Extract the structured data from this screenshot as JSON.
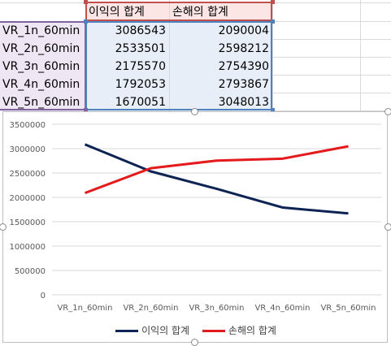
{
  "sheet": {
    "headers": [
      "이익의 합계",
      "손해의 합계"
    ],
    "rows": [
      {
        "name": "VR_1n_60min",
        "profit": "3086543",
        "loss": "2090004"
      },
      {
        "name": "VR_2n_60min",
        "profit": "2533501",
        "loss": "2598212"
      },
      {
        "name": "VR_3n_60min",
        "profit": "2175570",
        "loss": "2754390"
      },
      {
        "name": "VR_4n_60min",
        "profit": "1792053",
        "loss": "2793867"
      },
      {
        "name": "VR_5n_60min",
        "profit": "1670051",
        "loss": "3048013"
      }
    ]
  },
  "chart_data": {
    "type": "line",
    "title": "",
    "xlabel": "",
    "ylabel": "",
    "categories": [
      "VR_1n_60min",
      "VR_2n_60min",
      "VR_3n_60min",
      "VR_4n_60min",
      "VR_5n_60min"
    ],
    "ylim": [
      0,
      3500000
    ],
    "yticks": [
      "0",
      "500000",
      "1000000",
      "1500000",
      "2000000",
      "2500000",
      "3000000",
      "3500000"
    ],
    "grid": true,
    "legend": "bottom",
    "series": [
      {
        "name": "이익의 합계",
        "color": "#0d2354",
        "values": [
          3086543,
          2533501,
          2175570,
          1792053,
          1670051
        ]
      },
      {
        "name": "손해의 합계",
        "color": "#e41a1c",
        "values": [
          2090004,
          2598212,
          2754390,
          2793867,
          3048013
        ]
      }
    ]
  },
  "colors": {
    "header_border": "#c0504d",
    "name_border": "#8064a2",
    "value_border": "#4f81bd"
  }
}
